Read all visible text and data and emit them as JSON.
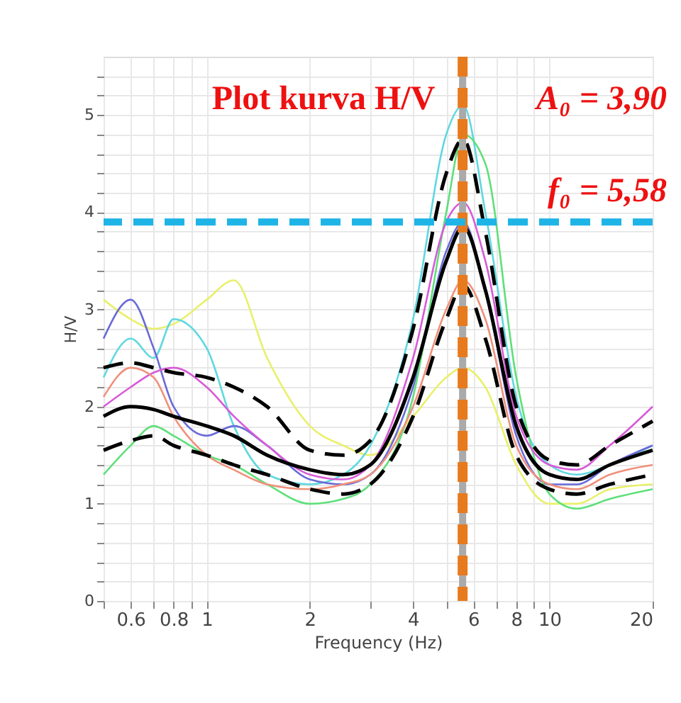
{
  "chart_data": {
    "type": "line",
    "xlabel": "Frequency (Hz)",
    "ylabel": "H/V",
    "log": "x",
    "grid": true,
    "marker": "none",
    "annotations": [
      "Plot kurva H/V",
      "A₀ = 3,90",
      "f₀  = 5,58"
    ],
    "x": [
      0.5,
      0.6,
      0.7,
      0.8,
      1,
      1.2,
      1.5,
      2,
      2.5,
      3,
      4,
      5,
      5.6,
      6.5,
      8,
      10,
      12,
      15,
      20
    ],
    "xlim": [
      0.5,
      20
    ],
    "xticks": [
      {
        "value": 0.5,
        "label": null
      },
      0.6,
      {
        "value": 0.7,
        "label": null
      },
      0.8,
      {
        "value": 0.9,
        "label": null
      },
      1,
      2,
      {
        "value": 3,
        "label": null
      },
      4,
      {
        "value": 5,
        "label": null
      },
      6,
      {
        "value": 7,
        "label": null
      },
      8,
      {
        "value": 9,
        "label": null
      },
      10,
      20
    ],
    "ylim": [
      0,
      5.6
    ],
    "yticks": [
      0,
      {
        "value": 0.2,
        "label": null
      },
      {
        "value": 0.4,
        "label": null
      },
      {
        "value": 0.6,
        "label": null
      },
      {
        "value": 0.8,
        "label": null
      },
      1,
      {
        "value": 1.2,
        "label": null
      },
      {
        "value": 1.4,
        "label": null
      },
      {
        "value": 1.6,
        "label": null
      },
      {
        "value": 1.8,
        "label": null
      },
      2,
      {
        "value": 2.2,
        "label": null
      },
      {
        "value": 2.4,
        "label": null
      },
      {
        "value": 2.6,
        "label": null
      },
      {
        "value": 2.8,
        "label": null
      },
      3,
      {
        "value": 3.2,
        "label": null
      },
      {
        "value": 3.4,
        "label": null
      },
      {
        "value": 3.6,
        "label": null
      },
      {
        "value": 3.8,
        "label": null
      },
      4,
      {
        "value": 4.2,
        "label": null
      },
      {
        "value": 4.4,
        "label": null
      },
      {
        "value": 4.6,
        "label": null
      },
      {
        "value": 4.8,
        "label": null
      },
      5,
      {
        "value": 5.2,
        "label": null
      },
      {
        "value": 5.4,
        "label": null
      }
    ],
    "series": [
      {
        "color": "#e8f06a",
        "values": [
          3.1,
          2.9,
          2.8,
          2.85,
          3.1,
          3.3,
          2.5,
          1.8,
          1.6,
          1.5,
          1.9,
          2.3,
          2.4,
          2.2,
          1.4,
          1.0,
          1.0,
          1.15,
          1.2
        ]
      },
      {
        "color": "#5fd8e0",
        "values": [
          2.3,
          2.7,
          2.5,
          2.9,
          2.6,
          1.8,
          1.3,
          1.2,
          1.3,
          1.6,
          2.9,
          4.8,
          5.1,
          4.0,
          2.1,
          1.4,
          1.3,
          1.4,
          1.6
        ]
      },
      {
        "color": "#6a6ad8",
        "values": [
          2.7,
          3.1,
          2.6,
          2.0,
          1.7,
          1.8,
          1.6,
          1.25,
          1.2,
          1.3,
          2.2,
          3.6,
          3.9,
          3.2,
          1.7,
          1.2,
          1.2,
          1.4,
          1.6
        ]
      },
      {
        "color": "#5ee07a",
        "values": [
          1.3,
          1.6,
          1.8,
          1.7,
          1.5,
          1.4,
          1.2,
          1.0,
          1.05,
          1.2,
          2.1,
          4.0,
          4.8,
          4.5,
          2.3,
          1.1,
          0.95,
          1.05,
          1.15
        ]
      },
      {
        "color": "#d85ad8",
        "values": [
          2.0,
          2.2,
          2.35,
          2.4,
          2.2,
          1.9,
          1.6,
          1.3,
          1.25,
          1.4,
          2.5,
          3.9,
          4.1,
          3.5,
          1.9,
          1.4,
          1.35,
          1.6,
          2.0
        ]
      },
      {
        "color": "#f0907a",
        "values": [
          2.1,
          2.4,
          2.3,
          1.9,
          1.5,
          1.35,
          1.2,
          1.15,
          1.2,
          1.3,
          2.0,
          3.0,
          3.3,
          2.9,
          1.6,
          1.2,
          1.15,
          1.3,
          1.4
        ]
      },
      {
        "color": "#000000",
        "line_style": "dashed",
        "values": [
          2.4,
          2.45,
          2.4,
          2.35,
          2.3,
          2.2,
          2.0,
          1.55,
          1.5,
          1.65,
          2.8,
          4.4,
          4.75,
          3.8,
          2.0,
          1.45,
          1.4,
          1.6,
          1.85
        ]
      },
      {
        "color": "#000000",
        "line_style": "solid",
        "values": [
          1.9,
          2.0,
          1.97,
          1.9,
          1.8,
          1.7,
          1.5,
          1.35,
          1.3,
          1.4,
          2.3,
          3.5,
          3.85,
          3.2,
          1.8,
          1.3,
          1.25,
          1.4,
          1.55
        ]
      },
      {
        "color": "#000000",
        "line_style": "dashed",
        "values": [
          1.55,
          1.65,
          1.7,
          1.6,
          1.5,
          1.4,
          1.3,
          1.15,
          1.1,
          1.2,
          1.9,
          2.9,
          3.25,
          2.7,
          1.5,
          1.15,
          1.1,
          1.2,
          1.3
        ]
      }
    ],
    "ref_lines": [
      {
        "axis": "x",
        "value": 5.58,
        "color": "#aaaaaa",
        "line_style": "solid"
      },
      {
        "axis": "x",
        "value": 5.58,
        "color": "#e87a1e",
        "line_style": "dashed"
      },
      {
        "axis": "y",
        "value": 3.9,
        "color": "#1eb4e6",
        "line_style": "dashed"
      }
    ]
  }
}
